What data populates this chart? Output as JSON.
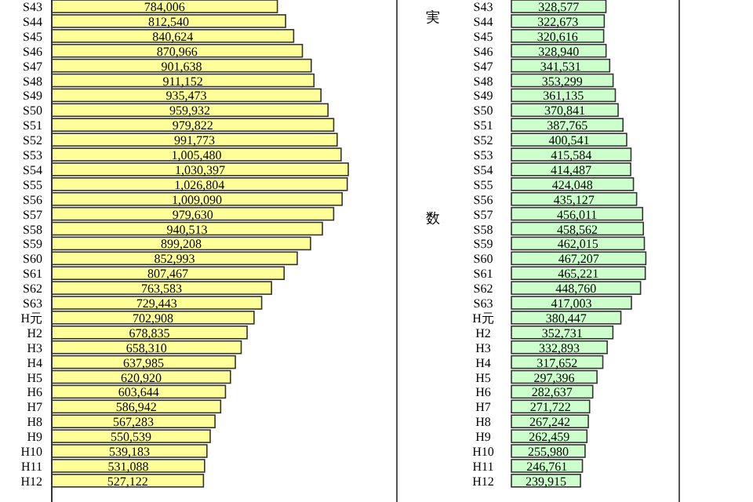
{
  "chart_data": [
    {
      "type": "bar",
      "orientation": "horizontal",
      "color": "#ffff99",
      "categories": [
        "S43",
        "S44",
        "S45",
        "S46",
        "S47",
        "S48",
        "S49",
        "S50",
        "S51",
        "S52",
        "S53",
        "S54",
        "S55",
        "S56",
        "S57",
        "S58",
        "S59",
        "S60",
        "S61",
        "S62",
        "S63",
        "H元",
        "H2",
        "H3",
        "H4",
        "H5",
        "H6",
        "H7",
        "H8",
        "H9",
        "H10",
        "H11",
        "H12"
      ],
      "values": [
        784006,
        812540,
        840624,
        870966,
        901638,
        911152,
        935473,
        959932,
        979822,
        991773,
        1005480,
        1030397,
        1026804,
        1009090,
        979630,
        940513,
        899208,
        852993,
        807467,
        763583,
        729443,
        702908,
        678835,
        658310,
        637985,
        620920,
        603644,
        586942,
        567283,
        550539,
        539183,
        531088,
        527122
      ],
      "value_labels": [
        "784,006",
        "812,540",
        "840,624",
        "870,966",
        "901,638",
        "911,152",
        "935,473",
        "959,932",
        "979,822",
        "991,773",
        "1,005,480",
        "1,030,397",
        "1,026,804",
        "1,009,090",
        "979,630",
        "940,513",
        "899,208",
        "852,993",
        "807,467",
        "763,583",
        "729,443",
        "702,908",
        "678,835",
        "658,310",
        "637,985",
        "620,920",
        "603,644",
        "586,942",
        "567,283",
        "550,539",
        "539,183",
        "531,088",
        "527,122"
      ]
    },
    {
      "type": "bar",
      "orientation": "horizontal",
      "color": "#ccffcc",
      "annotations": [
        "実",
        "数"
      ],
      "categories": [
        "S43",
        "S44",
        "S45",
        "S46",
        "S47",
        "S48",
        "S49",
        "S50",
        "S51",
        "S52",
        "S53",
        "S54",
        "S55",
        "S56",
        "S57",
        "S58",
        "S59",
        "S60",
        "S61",
        "S62",
        "S63",
        "H元",
        "H2",
        "H3",
        "H4",
        "H5",
        "H6",
        "H7",
        "H8",
        "H9",
        "H10",
        "H11",
        "H12"
      ],
      "values": [
        328577,
        322673,
        320616,
        328940,
        341531,
        353299,
        361135,
        370841,
        387765,
        400541,
        415584,
        414487,
        424048,
        435127,
        456011,
        458562,
        462015,
        467207,
        465221,
        448760,
        417003,
        380447,
        352731,
        332893,
        317652,
        297396,
        282637,
        271722,
        267242,
        262459,
        255980,
        246761,
        239915
      ],
      "value_labels": [
        "328,577",
        "322,673",
        "320,616",
        "328,940",
        "341,531",
        "353,299",
        "361,135",
        "370,841",
        "387,765",
        "400,541",
        "415,584",
        "414,487",
        "424,048",
        "435,127",
        "456,011",
        "458,562",
        "462,015",
        "467,207",
        "465,221",
        "448,760",
        "417,003",
        "380,447",
        "352,731",
        "332,893",
        "317,652",
        "297,396",
        "282,637",
        "271,722",
        "267,242",
        "262,459",
        "255,980",
        "246,761",
        "239,915"
      ]
    }
  ]
}
